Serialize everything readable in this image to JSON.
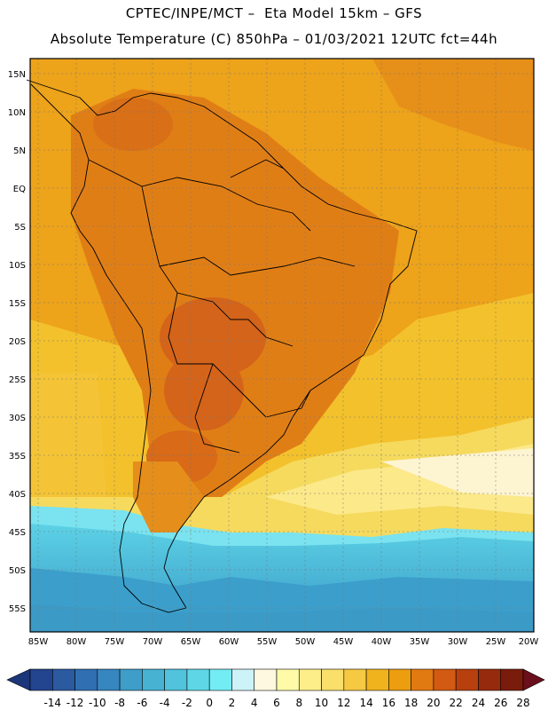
{
  "title": {
    "line1": "CPTEC/INPE/MCT –  Eta Model 15km – GFS",
    "line2": "Absolute Temperature (C) 850hPa – 01/03/2021 12UTC fct=44h"
  },
  "axes": {
    "lat_labels": [
      "15N",
      "10N",
      "5N",
      "EQ",
      "5S",
      "10S",
      "15S",
      "20S",
      "25S",
      "30S",
      "35S",
      "40S",
      "45S",
      "50S",
      "55S"
    ],
    "lon_labels": [
      "85W",
      "80W",
      "75W",
      "70W",
      "65W",
      "60W",
      "55W",
      "50W",
      "45W",
      "40W",
      "35W",
      "30W",
      "25W",
      "20W"
    ]
  },
  "colorbar": {
    "ticks": [
      "-14",
      "-12",
      "-10",
      "-8",
      "-6",
      "-4",
      "-2",
      "0",
      "2",
      "4",
      "6",
      "8",
      "10",
      "12",
      "14",
      "16",
      "18",
      "20",
      "22",
      "24",
      "26",
      "28"
    ],
    "colors": [
      "#23448f",
      "#2b5aa0",
      "#2f6fb2",
      "#3686bf",
      "#3f9dc9",
      "#48b2d3",
      "#52c3dc",
      "#5fd6e6",
      "#74ecf4",
      "#cdf2f8",
      "#fdf8df",
      "#fefaa8",
      "#fdee8a",
      "#fadf6a",
      "#f5c942",
      "#f0b31e",
      "#ec9d10",
      "#e27a12",
      "#d25a12",
      "#b8400f",
      "#962a0d",
      "#7a1c0b"
    ],
    "extend_low_color": "#1c367a",
    "extend_high_color": "#6b0f1c"
  }
}
